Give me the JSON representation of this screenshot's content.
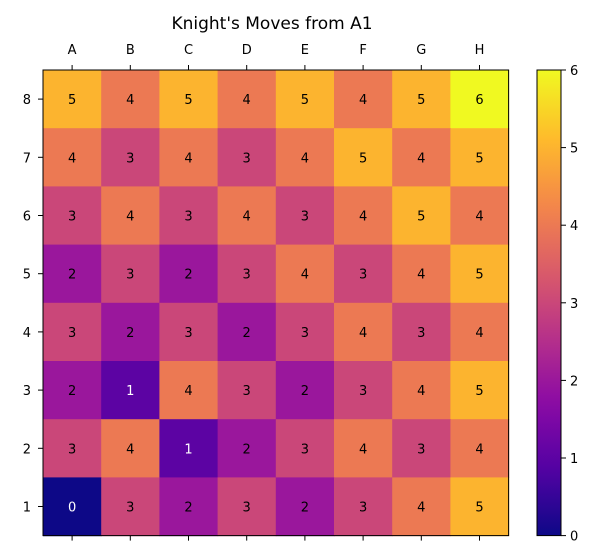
{
  "chart_data": {
    "type": "heatmap",
    "title": "Knight's Moves from A1",
    "columns": [
      "A",
      "B",
      "C",
      "D",
      "E",
      "F",
      "G",
      "H"
    ],
    "rows": [
      "8",
      "7",
      "6",
      "5",
      "4",
      "3",
      "2",
      "1"
    ],
    "values": [
      [
        5,
        4,
        5,
        4,
        5,
        4,
        5,
        6
      ],
      [
        4,
        3,
        4,
        3,
        4,
        5,
        4,
        5
      ],
      [
        3,
        4,
        3,
        4,
        3,
        4,
        5,
        4
      ],
      [
        2,
        3,
        2,
        3,
        4,
        3,
        4,
        5
      ],
      [
        3,
        2,
        3,
        2,
        3,
        4,
        3,
        4
      ],
      [
        2,
        1,
        4,
        3,
        2,
        3,
        4,
        5
      ],
      [
        3,
        4,
        1,
        2,
        3,
        4,
        3,
        4
      ],
      [
        0,
        3,
        2,
        3,
        2,
        3,
        4,
        5
      ]
    ],
    "colormap": "plasma",
    "vmin": 0,
    "vmax": 6,
    "colorbar_ticks": [
      "0",
      "1",
      "2",
      "3",
      "4",
      "5",
      "6"
    ],
    "column_labels_position": "top",
    "colorbar_position": "right"
  }
}
